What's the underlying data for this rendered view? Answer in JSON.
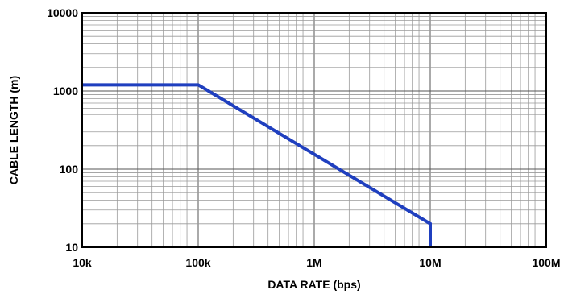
{
  "chart_data": {
    "type": "line",
    "xlabel": "DATA RATE (bps)",
    "ylabel": "CABLE LENGTH (m)",
    "x_scale": "log",
    "y_scale": "log",
    "xlim": [
      10000,
      100000000
    ],
    "ylim": [
      10,
      10000
    ],
    "x_ticks": [
      {
        "value": 10000,
        "label": "10k"
      },
      {
        "value": 100000,
        "label": "100k"
      },
      {
        "value": 1000000,
        "label": "1M"
      },
      {
        "value": 10000000,
        "label": "10M"
      },
      {
        "value": 100000000,
        "label": "100M"
      }
    ],
    "y_ticks": [
      {
        "value": 10,
        "label": "10"
      },
      {
        "value": 100,
        "label": "100"
      },
      {
        "value": 1000,
        "label": "1000"
      },
      {
        "value": 10000,
        "label": "10000"
      }
    ],
    "grid": true,
    "line_color": "#1f3fbf",
    "series": [
      {
        "x": [
          10000,
          100000,
          10000000,
          10000000
        ],
        "y": [
          1200,
          1200,
          20,
          10
        ]
      }
    ]
  }
}
